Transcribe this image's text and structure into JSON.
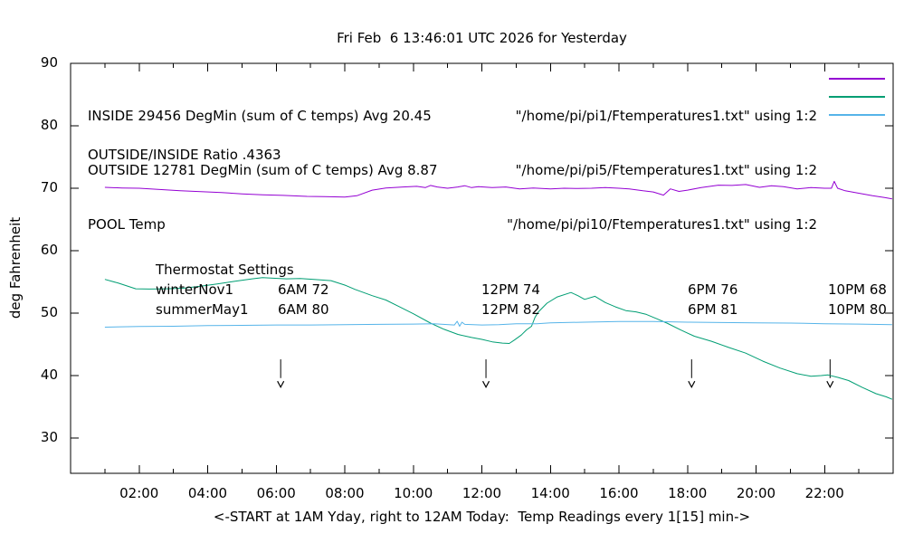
{
  "title": "Fri Feb  6 13:46:01 UTC 2026 for Yesterday",
  "ylabel": "deg Fahrenheit",
  "xlabel": "<-START at 1AM Yday, right to 12AM Today:  Temp Readings every 1[15] min->",
  "colors": {
    "inside": "#9400d3",
    "outside": "#009e73",
    "pool": "#56b4e9",
    "text": "#000000",
    "background": "#ffffff"
  },
  "legend": {
    "left_lines": {
      "inside": "INSIDE 29456 DegMin (sum of C temps) Avg 20.45",
      "outside": "OUTSIDE 12781 DegMin (sum of C temps) Avg 8.87",
      "pool": "POOL Temp"
    },
    "right_entries": [
      {
        "label": "\"/home/pi/pi1/Ftemperatures1.txt\" using 1:2",
        "color": "#9400d3"
      },
      {
        "label": "\"/home/pi/pi5/Ftemperatures1.txt\" using 1:2",
        "color": "#009e73"
      },
      {
        "label": "\"/home/pi/pi10/Ftemperatures1.txt\" using 1:2",
        "color": "#56b4e9"
      }
    ]
  },
  "ratio_label": "OUTSIDE/INSIDE Ratio .4363",
  "thermostat": {
    "heading": "Thermostat Settings",
    "rows": [
      {
        "season": "winterNov1",
        "settings": [
          "6AM 72",
          "12PM 74",
          "6PM 76",
          "10PM 68"
        ]
      },
      {
        "season": "summerMay1",
        "settings": [
          "6AM 80",
          "12PM 82",
          "6PM 81",
          "10PM 80"
        ]
      }
    ]
  },
  "chart_data": {
    "type": "line",
    "title": "Fri Feb  6 13:46:01 UTC 2026 for Yesterday",
    "xlabel": "<-START at 1AM Yday, right to 12AM Today:  Temp Readings every 1[15] min->",
    "ylabel": "deg Fahrenheit",
    "x_axis": {
      "min_hour": 0,
      "max_hour": 24,
      "tick_hours": [
        2,
        4,
        6,
        8,
        10,
        12,
        14,
        16,
        18,
        20,
        22
      ],
      "tick_labels": [
        "02:00",
        "04:00",
        "06:00",
        "08:00",
        "10:00",
        "12:00",
        "14:00",
        "16:00",
        "18:00",
        "20:00",
        "22:00"
      ],
      "minor_tick_hours": [
        1,
        3,
        5,
        7,
        9,
        11,
        13,
        15,
        17,
        19,
        21,
        23
      ]
    },
    "y_axis": {
      "ticks": [
        90,
        80,
        70,
        60,
        50,
        40,
        30
      ],
      "top_value": 90,
      "bottom_value": 24.3,
      "grid": false
    },
    "legend_position": "top-right",
    "arrow_hours": [
      6.13,
      12.12,
      18.12,
      22.16
    ],
    "series": [
      {
        "name": "INSIDE",
        "color": "#9400d3",
        "points": [
          [
            1.0,
            70.15
          ],
          [
            1.5,
            70.05
          ],
          [
            2.0,
            70.0
          ],
          [
            2.6,
            69.8
          ],
          [
            3.2,
            69.6
          ],
          [
            3.8,
            69.45
          ],
          [
            4.4,
            69.3
          ],
          [
            5.0,
            69.1
          ],
          [
            5.6,
            68.95
          ],
          [
            6.2,
            68.85
          ],
          [
            6.9,
            68.7
          ],
          [
            7.4,
            68.65
          ],
          [
            8.0,
            68.6
          ],
          [
            8.35,
            68.8
          ],
          [
            8.8,
            69.7
          ],
          [
            9.2,
            70.05
          ],
          [
            9.7,
            70.2
          ],
          [
            10.1,
            70.3
          ],
          [
            10.35,
            70.1
          ],
          [
            10.5,
            70.45
          ],
          [
            10.7,
            70.2
          ],
          [
            11.0,
            70.0
          ],
          [
            11.3,
            70.2
          ],
          [
            11.5,
            70.4
          ],
          [
            11.7,
            70.1
          ],
          [
            11.9,
            70.25
          ],
          [
            12.3,
            70.1
          ],
          [
            12.7,
            70.2
          ],
          [
            13.1,
            69.9
          ],
          [
            13.5,
            70.05
          ],
          [
            14.0,
            69.9
          ],
          [
            14.4,
            70.0
          ],
          [
            14.8,
            69.95
          ],
          [
            15.2,
            70.0
          ],
          [
            15.6,
            70.1
          ],
          [
            16.0,
            70.0
          ],
          [
            16.3,
            69.9
          ],
          [
            16.7,
            69.6
          ],
          [
            17.0,
            69.4
          ],
          [
            17.3,
            68.9
          ],
          [
            17.5,
            69.9
          ],
          [
            17.75,
            69.5
          ],
          [
            18.0,
            69.7
          ],
          [
            18.4,
            70.1
          ],
          [
            18.9,
            70.5
          ],
          [
            19.3,
            70.45
          ],
          [
            19.7,
            70.6
          ],
          [
            20.1,
            70.15
          ],
          [
            20.45,
            70.4
          ],
          [
            20.8,
            70.25
          ],
          [
            21.2,
            69.9
          ],
          [
            21.6,
            70.1
          ],
          [
            22.0,
            70.0
          ],
          [
            22.2,
            70.0
          ],
          [
            22.28,
            71.1
          ],
          [
            22.38,
            70.0
          ],
          [
            22.6,
            69.6
          ],
          [
            23.0,
            69.2
          ],
          [
            23.4,
            68.8
          ],
          [
            23.75,
            68.5
          ],
          [
            23.97,
            68.3
          ]
        ]
      },
      {
        "name": "OUTSIDE",
        "color": "#009e73",
        "points": [
          [
            1.0,
            55.4
          ],
          [
            1.4,
            54.8
          ],
          [
            1.9,
            53.9
          ],
          [
            2.3,
            53.85
          ],
          [
            2.8,
            53.9
          ],
          [
            3.3,
            54.0
          ],
          [
            3.8,
            54.3
          ],
          [
            4.3,
            54.7
          ],
          [
            4.8,
            55.1
          ],
          [
            5.3,
            55.5
          ],
          [
            5.6,
            55.7
          ],
          [
            5.9,
            55.6
          ],
          [
            6.3,
            55.5
          ],
          [
            6.7,
            55.55
          ],
          [
            7.1,
            55.4
          ],
          [
            7.6,
            55.2
          ],
          [
            8.0,
            54.5
          ],
          [
            8.3,
            53.8
          ],
          [
            8.8,
            52.8
          ],
          [
            9.2,
            52.1
          ],
          [
            9.6,
            51.0
          ],
          [
            10.0,
            49.9
          ],
          [
            10.5,
            48.4
          ],
          [
            10.9,
            47.4
          ],
          [
            11.3,
            46.6
          ],
          [
            11.7,
            46.1
          ],
          [
            12.0,
            45.8
          ],
          [
            12.3,
            45.4
          ],
          [
            12.6,
            45.2
          ],
          [
            12.8,
            45.15
          ],
          [
            12.95,
            45.7
          ],
          [
            13.15,
            46.5
          ],
          [
            13.3,
            47.3
          ],
          [
            13.45,
            47.9
          ],
          [
            13.55,
            49.3
          ],
          [
            13.65,
            50.2
          ],
          [
            13.9,
            51.6
          ],
          [
            14.2,
            52.6
          ],
          [
            14.6,
            53.3
          ],
          [
            14.8,
            52.8
          ],
          [
            15.0,
            52.2
          ],
          [
            15.3,
            52.7
          ],
          [
            15.6,
            51.7
          ],
          [
            15.9,
            51.0
          ],
          [
            16.2,
            50.4
          ],
          [
            16.5,
            50.2
          ],
          [
            16.8,
            49.8
          ],
          [
            17.1,
            49.1
          ],
          [
            17.4,
            48.4
          ],
          [
            17.8,
            47.3
          ],
          [
            18.2,
            46.3
          ],
          [
            18.7,
            45.5
          ],
          [
            19.2,
            44.5
          ],
          [
            19.7,
            43.6
          ],
          [
            20.2,
            42.3
          ],
          [
            20.7,
            41.2
          ],
          [
            21.2,
            40.3
          ],
          [
            21.6,
            39.9
          ],
          [
            21.9,
            40.0
          ],
          [
            22.1,
            40.1
          ],
          [
            22.4,
            39.7
          ],
          [
            22.7,
            39.2
          ],
          [
            23.1,
            38.1
          ],
          [
            23.5,
            37.1
          ],
          [
            23.8,
            36.6
          ],
          [
            23.97,
            36.2
          ]
        ]
      },
      {
        "name": "POOL",
        "color": "#56b4e9",
        "points": [
          [
            1.0,
            47.75
          ],
          [
            2.0,
            47.85
          ],
          [
            3.0,
            47.9
          ],
          [
            4.0,
            48.0
          ],
          [
            5.0,
            48.05
          ],
          [
            6.0,
            48.1
          ],
          [
            7.0,
            48.1
          ],
          [
            8.0,
            48.15
          ],
          [
            9.0,
            48.2
          ],
          [
            10.0,
            48.25
          ],
          [
            10.6,
            48.3
          ],
          [
            11.2,
            48.1
          ],
          [
            11.28,
            48.7
          ],
          [
            11.35,
            47.9
          ],
          [
            11.42,
            48.55
          ],
          [
            11.5,
            48.2
          ],
          [
            12.0,
            48.1
          ],
          [
            12.5,
            48.15
          ],
          [
            13.0,
            48.3
          ],
          [
            13.6,
            48.3
          ],
          [
            14.0,
            48.45
          ],
          [
            15.0,
            48.55
          ],
          [
            16.0,
            48.65
          ],
          [
            17.0,
            48.65
          ],
          [
            18.0,
            48.55
          ],
          [
            19.0,
            48.5
          ],
          [
            20.0,
            48.45
          ],
          [
            21.0,
            48.4
          ],
          [
            22.0,
            48.3
          ],
          [
            23.0,
            48.25
          ],
          [
            23.97,
            48.15
          ]
        ]
      }
    ]
  }
}
